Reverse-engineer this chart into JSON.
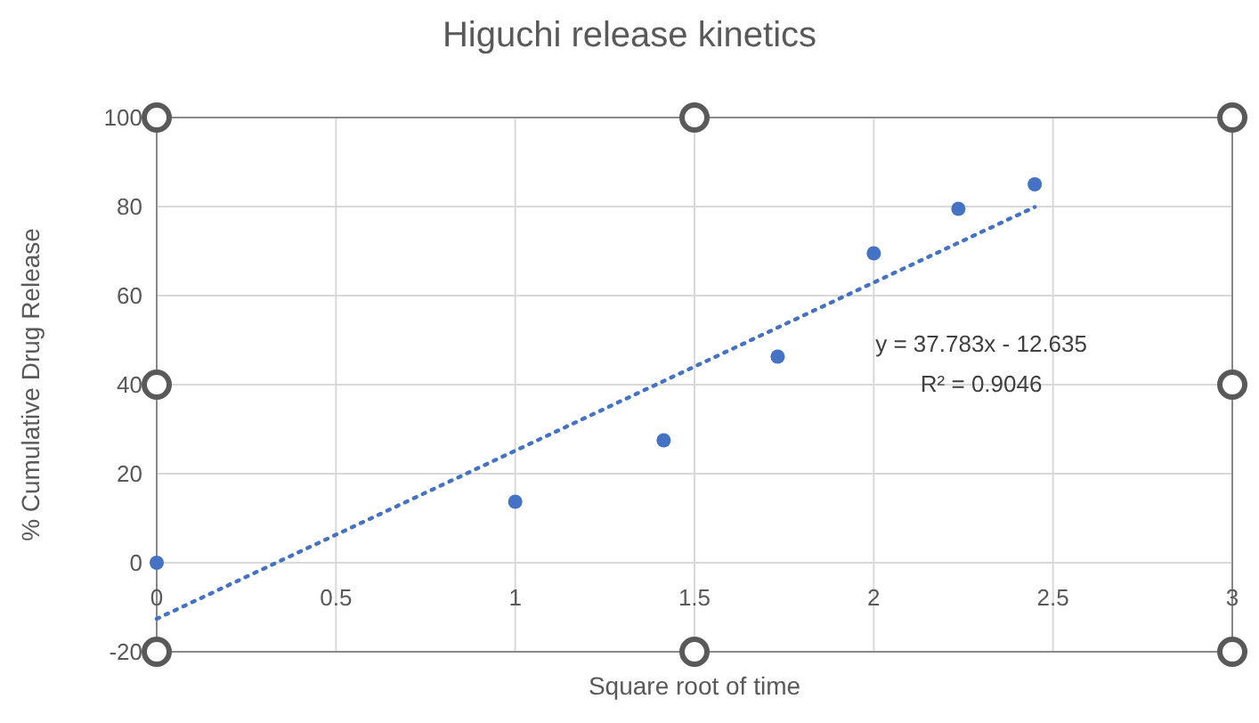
{
  "chart_data": {
    "type": "scatter",
    "title": "Higuchi release kinetics",
    "xlabel": "Square root of time",
    "ylabel": "% Cumulative Drug Release",
    "x": [
      0,
      1,
      1.414,
      1.732,
      2,
      2.236,
      2.449
    ],
    "series": [
      {
        "color": "#4472c4",
        "marker": "circle",
        "values": [
          0,
          13.7,
          27.5,
          46.3,
          69.5,
          79.5,
          85
        ]
      },
      {
        "type": "line",
        "color": "#4472c4",
        "marker": "none",
        "line_style": "dotted",
        "x": [
          0,
          2.449
        ],
        "values": [
          -12.6,
          79.9
        ]
      }
    ],
    "annotations": [
      "y = 37.783x - 12.635",
      "R² = 0.9046"
    ],
    "xlim": [
      0,
      3
    ],
    "xticks": [
      0,
      0.5,
      1,
      1.5,
      2,
      2.5,
      3
    ],
    "ylim": [
      -20,
      100
    ],
    "yticks": [
      -20,
      0,
      20,
      40,
      60,
      80,
      100
    ],
    "grid": true
  }
}
